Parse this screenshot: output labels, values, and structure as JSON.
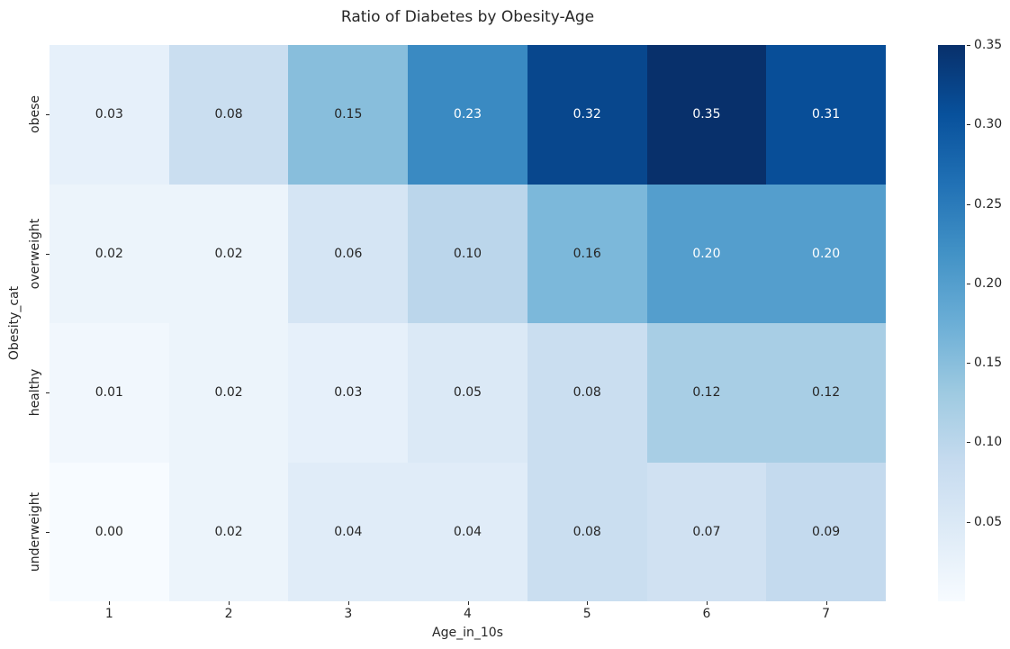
{
  "chart_data": {
    "type": "heatmap",
    "title": "Ratio of Diabetes by Obesity-Age",
    "xlabel": "Age_in_10s",
    "ylabel": "Obesity_cat",
    "x_categories": [
      "1",
      "2",
      "3",
      "4",
      "5",
      "6",
      "7"
    ],
    "y_categories": [
      "obese",
      "overweight",
      "healthy",
      "underweight"
    ],
    "values": [
      [
        0.03,
        0.08,
        0.15,
        0.23,
        0.32,
        0.35,
        0.31
      ],
      [
        0.02,
        0.02,
        0.06,
        0.1,
        0.16,
        0.2,
        0.2
      ],
      [
        0.01,
        0.02,
        0.03,
        0.05,
        0.08,
        0.12,
        0.12
      ],
      [
        0.0,
        0.02,
        0.04,
        0.04,
        0.08,
        0.07,
        0.09
      ]
    ],
    "annotation_decimals": 2,
    "colormap": "Blues",
    "colormap_stops": [
      "#f7fbff",
      "#deebf7",
      "#c6dbef",
      "#9ecae1",
      "#6baed6",
      "#4292c6",
      "#2171b5",
      "#08519c",
      "#08306b"
    ],
    "vmin": 0,
    "vmax": 0.35,
    "colorbar_ticks": [
      0.35,
      0.3,
      0.25,
      0.2,
      0.15,
      0.1,
      0.05
    ],
    "colorbar_position": "right",
    "grid": false,
    "background": "#ffffff",
    "text_color": "#262626",
    "white_text_threshold": 0.55
  }
}
